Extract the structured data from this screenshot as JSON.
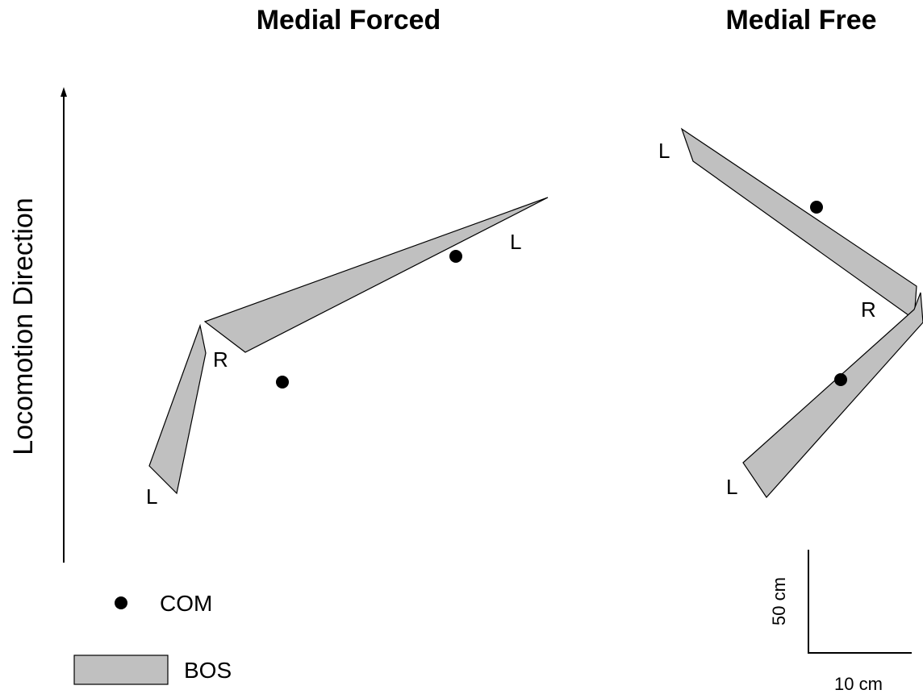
{
  "panels": {
    "forced": {
      "title": "Medial Forced",
      "labels": {
        "left_top": "L",
        "right": "R",
        "left_bottom": "L"
      }
    },
    "free": {
      "title": "Medial Free",
      "labels": {
        "left_top": "L",
        "right": "R",
        "left_bottom": "L"
      }
    }
  },
  "axis": {
    "label": "Locomotion Direction"
  },
  "legend": {
    "com_label": "COM",
    "bos_label": "BOS"
  },
  "scale": {
    "vertical": "50 cm",
    "horizontal": "10 cm"
  },
  "colors": {
    "bos_fill": "#c0c0c0",
    "com": "#000000"
  }
}
